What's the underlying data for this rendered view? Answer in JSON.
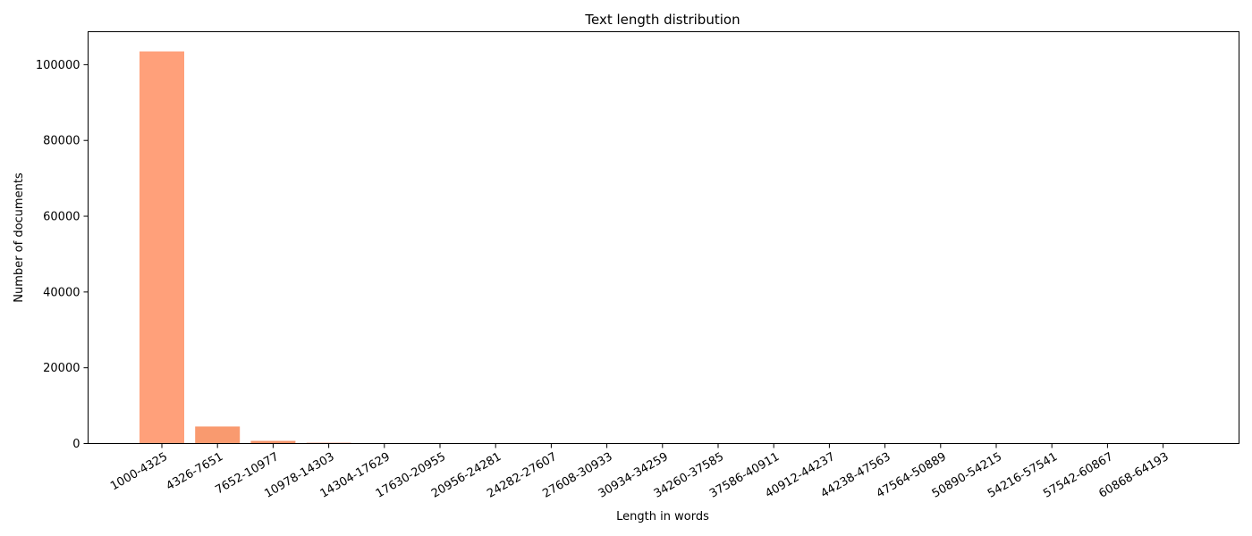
{
  "chart_data": {
    "type": "bar",
    "title": "Text length distribution",
    "xlabel": "Length in words",
    "ylabel": "Number of documents",
    "categories": [
      "1000-4325",
      "4326-7651",
      "7652-10977",
      "10978-14303",
      "14304-17629",
      "17630-20955",
      "20956-24281",
      "24282-27607",
      "27608-30933",
      "30934-34259",
      "34260-37585",
      "37586-40911",
      "40912-44237",
      "44238-47563",
      "47564-50889",
      "50890-54215",
      "54216-57541",
      "57542-60867",
      "60868-64193"
    ],
    "values": [
      103500,
      4500,
      700,
      200,
      60,
      30,
      20,
      10,
      8,
      5,
      4,
      3,
      2,
      2,
      1,
      1,
      1,
      1,
      1
    ],
    "colors": [
      "#FFA07A",
      "#F99A6F",
      "#F3936A",
      "#E07050",
      "#D05A40",
      "#C44A35",
      "#C04030",
      "#BB3A2D",
      "#B5352A",
      "#B03028",
      "#AB2C26",
      "#A62824",
      "#A12422",
      "#9C2020",
      "#971C1E",
      "#92181C",
      "#8D141A",
      "#881018",
      "#830C16"
    ],
    "yticks": [
      0,
      20000,
      40000,
      60000,
      80000,
      100000
    ],
    "ylim": [
      0,
      108700
    ],
    "grid": false,
    "legend": "none",
    "xtick_rotation": 30
  }
}
